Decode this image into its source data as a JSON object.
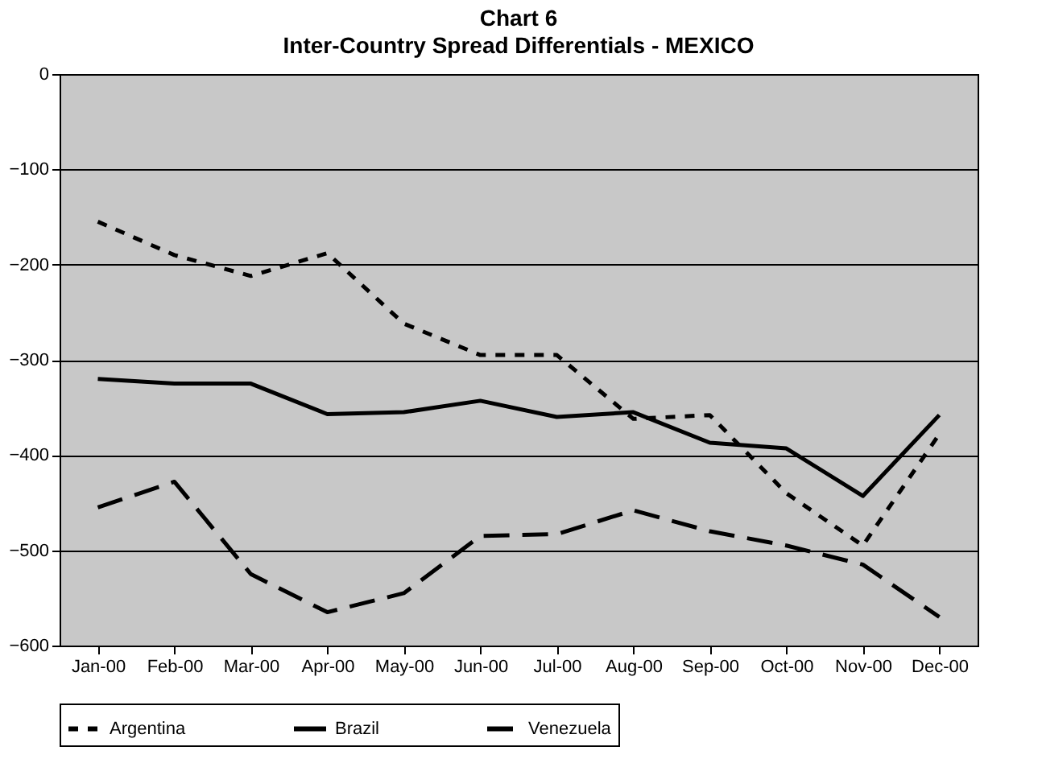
{
  "chart_data": {
    "type": "line",
    "title": "Chart 6",
    "subtitle": "Inter-Country Spread Differentials - MEXICO",
    "categories": [
      "Jan-00",
      "Feb-00",
      "Mar-00",
      "Apr-00",
      "May-00",
      "Jun-00",
      "Jul-00",
      "Aug-00",
      "Sep-00",
      "Oct-00",
      "Nov-00",
      "Dec-00"
    ],
    "series": [
      {
        "name": "Argentina",
        "color": "#000000",
        "line_style": "dashed",
        "values": [
          -155,
          -190,
          -212,
          -188,
          -262,
          -295,
          -295,
          -362,
          -358,
          -440,
          -495,
          -378
        ]
      },
      {
        "name": "Brazil",
        "color": "#000000",
        "line_style": "solid",
        "values": [
          -320,
          -325,
          -325,
          -357,
          -355,
          -343,
          -360,
          -355,
          -387,
          -393,
          -443,
          -358
        ]
      },
      {
        "name": "Venezuela",
        "color": "#000000",
        "line_style": "longdash",
        "values": [
          -455,
          -428,
          -525,
          -565,
          -545,
          -485,
          -483,
          -458,
          -480,
          -495,
          -515,
          -570
        ]
      }
    ],
    "ylim": [
      -600,
      0
    ],
    "yticks": [
      0,
      -100,
      -200,
      -300,
      -400,
      -500,
      -600
    ],
    "grid": "y",
    "legend": "bottom",
    "marker": "none"
  }
}
